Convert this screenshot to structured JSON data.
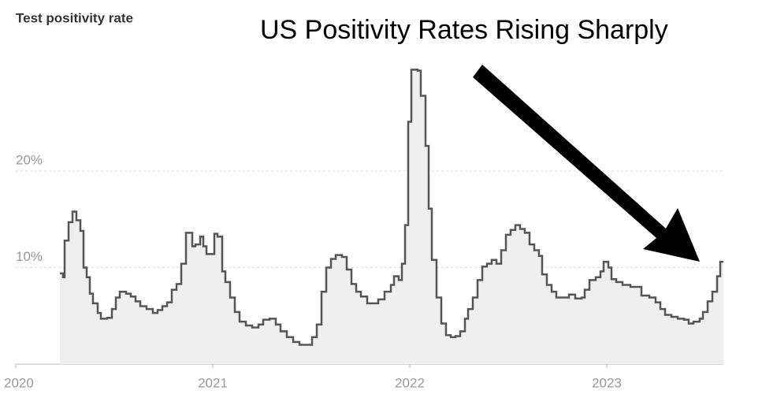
{
  "chart_data": {
    "type": "line",
    "title": "Test positivity rate",
    "annotation": "US Positivity Rates Rising Sharply",
    "x": [
      2020.224,
      2020.24,
      2020.248,
      2020.268,
      2020.288,
      2020.308,
      2020.328,
      2020.344,
      2020.36,
      2020.376,
      2020.392,
      2020.416,
      2020.432,
      2020.464,
      2020.488,
      2020.508,
      2020.528,
      2020.56,
      2020.584,
      2020.608,
      2020.632,
      2020.664,
      2020.696,
      2020.72,
      2020.744,
      2020.768,
      2020.792,
      2020.816,
      2020.84,
      2020.864,
      2020.88,
      2020.896,
      2020.912,
      2020.936,
      2020.952,
      2020.968,
      2020.992,
      2021.008,
      2021.024,
      2021.048,
      2021.064,
      2021.088,
      2021.112,
      2021.136,
      2021.168,
      2021.2,
      2021.232,
      2021.256,
      2021.288,
      2021.32,
      2021.344,
      2021.376,
      2021.408,
      2021.44,
      2021.48,
      2021.504,
      2021.528,
      2021.552,
      2021.576,
      2021.6,
      2021.624,
      2021.656,
      2021.68,
      2021.704,
      2021.728,
      2021.752,
      2021.784,
      2021.808,
      2021.84,
      2021.872,
      2021.904,
      2021.92,
      2021.944,
      2021.96,
      2021.976,
      2021.992,
      2022.008,
      2022.04,
      2022.056,
      2022.08,
      2022.096,
      2022.112,
      2022.136,
      2022.16,
      2022.184,
      2022.208,
      2022.232,
      2022.256,
      2022.28,
      2022.296,
      2022.32,
      2022.344,
      2022.368,
      2022.392,
      2022.416,
      2022.44,
      2022.464,
      2022.488,
      2022.512,
      2022.536,
      2022.56,
      2022.584,
      2022.608,
      2022.632,
      2022.656,
      2022.672,
      2022.696,
      2022.72,
      2022.744,
      2022.776,
      2022.808,
      2022.84,
      2022.872,
      2022.888,
      2022.912,
      2022.944,
      2022.968,
      2022.984,
      2023.008,
      2023.024,
      2023.048,
      2023.08,
      2023.12,
      2023.152,
      2023.176,
      2023.216,
      2023.248,
      2023.272,
      2023.296,
      2023.328,
      2023.36,
      2023.392,
      2023.416,
      2023.44,
      2023.472,
      2023.488,
      2023.512,
      2023.536,
      2023.56,
      2023.576,
      2023.592
    ],
    "series": [
      {
        "color": "#555555",
        "values": [
          9.4,
          9.0,
          12.8,
          14.7,
          15.8,
          14.9,
          13.8,
          10.0,
          9.0,
          7.3,
          6.3,
          5.3,
          4.7,
          4.8,
          5.7,
          6.9,
          7.5,
          7.3,
          7.0,
          6.5,
          6.0,
          5.7,
          5.3,
          5.6,
          6.0,
          6.4,
          7.7,
          8.3,
          10.4,
          13.6,
          13.6,
          12.2,
          12.4,
          13.2,
          12.2,
          11.4,
          11.4,
          13.5,
          13.2,
          9.6,
          8.5,
          6.9,
          5.4,
          4.4,
          4.0,
          3.8,
          4.1,
          4.6,
          4.7,
          4.1,
          3.4,
          2.8,
          2.3,
          2.0,
          2.0,
          2.8,
          4.1,
          7.5,
          10.0,
          10.9,
          11.3,
          11.1,
          9.8,
          8.3,
          7.5,
          7.0,
          6.3,
          6.3,
          6.7,
          7.5,
          8.2,
          9.1,
          8.7,
          10.4,
          14.4,
          25.1,
          30.5,
          30.4,
          27.8,
          22.6,
          16.1,
          10.8,
          6.9,
          4.2,
          3.0,
          2.8,
          2.9,
          3.4,
          4.7,
          5.7,
          6.9,
          8.7,
          10.1,
          10.4,
          10.8,
          10.4,
          11.8,
          13.4,
          13.9,
          14.4,
          14.0,
          13.6,
          12.4,
          11.8,
          11.2,
          9.3,
          8.2,
          7.5,
          6.9,
          6.9,
          7.2,
          6.8,
          6.9,
          7.7,
          8.7,
          9.0,
          9.6,
          10.6,
          10.0,
          8.8,
          8.5,
          8.2,
          8.0,
          8.0,
          7.1,
          6.9,
          6.4,
          5.7,
          5.1,
          4.9,
          4.7,
          4.6,
          4.2,
          4.4,
          4.7,
          5.4,
          6.5,
          7.5,
          9.1,
          10.6,
          10.6
        ]
      }
    ],
    "fill": "#efefef",
    "xlim": [
      2020,
      2023.592
    ],
    "xticks": [
      2020,
      2021,
      2022,
      2023
    ],
    "ylim": [
      0,
      32
    ],
    "yticks": [
      {
        "value": 10,
        "label": "10%"
      },
      {
        "value": 20,
        "label": "20%"
      }
    ],
    "grid": true,
    "step": true
  }
}
